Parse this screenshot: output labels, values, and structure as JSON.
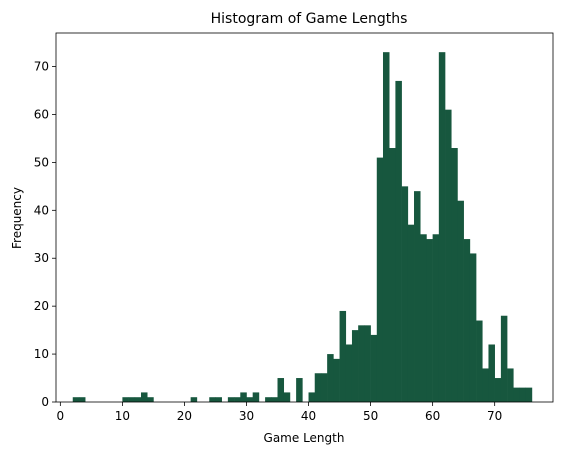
{
  "chart_data": {
    "type": "bar",
    "title": "Histogram of Game Lengths",
    "xlabel": "Game Length",
    "ylabel": "Frequency",
    "xlim": [
      -0.7,
      79.4
    ],
    "ylim": [
      0,
      77
    ],
    "xticks": [
      0,
      10,
      20,
      30,
      40,
      50,
      60,
      70
    ],
    "yticks": [
      0,
      10,
      20,
      30,
      40,
      50,
      60,
      70
    ],
    "grid": false,
    "bar_color": "#17573e",
    "bin_start": 2,
    "bin_width": 1,
    "values": [
      1,
      1,
      0,
      0,
      0,
      0,
      0,
      0,
      1,
      1,
      1,
      2,
      1,
      0,
      0,
      0,
      0,
      0,
      0,
      1,
      0,
      0,
      1,
      1,
      0,
      1,
      1,
      2,
      1,
      2,
      0,
      1,
      1,
      5,
      2,
      0,
      5,
      0,
      2,
      6,
      6,
      10,
      9,
      19,
      12,
      15,
      16,
      16,
      14,
      51,
      73,
      53,
      67,
      45,
      37,
      44,
      35,
      34,
      35,
      73,
      61,
      53,
      42,
      34,
      31,
      17,
      7,
      12,
      5,
      18,
      7,
      3,
      3,
      3
    ]
  }
}
